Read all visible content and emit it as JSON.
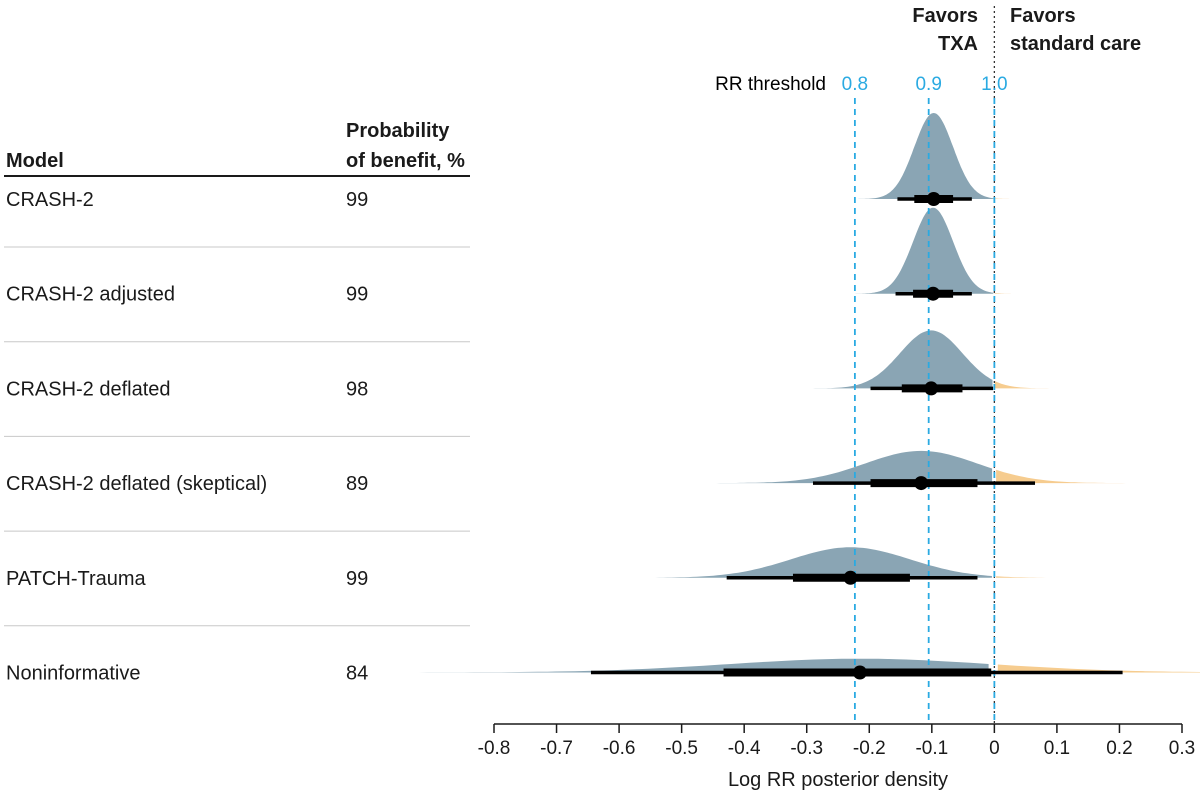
{
  "table": {
    "model_header": "Model",
    "prob_header_line1": "Probability",
    "prob_header_line2": "of benefit, %"
  },
  "favors": {
    "txa_line1": "Favors",
    "txa_line2": "TXA",
    "standard_line1": "Favors",
    "standard_line2": "standard care"
  },
  "threshold": {
    "label": "RR threshold",
    "values": [
      0.8,
      0.9,
      1.0
    ],
    "value_labels": [
      "0.8",
      "0.9",
      "1.0"
    ]
  },
  "colors": {
    "benefit": "#8aa5b4",
    "harm": "#f6cc8f",
    "threshold_line": "#2aaae2",
    "null_line": "#333333",
    "interval": "#000000",
    "row_divider": "#c8c8c8"
  },
  "chart_data": {
    "type": "density",
    "title": "",
    "xlabel": "Log RR posterior density",
    "ylabel": "",
    "xlim": [
      -0.8,
      0.3
    ],
    "xticks": [
      -0.8,
      -0.7,
      -0.6,
      -0.5,
      -0.4,
      -0.3,
      -0.2,
      -0.1,
      0,
      0.1,
      0.2,
      0.3
    ],
    "xtick_labels": [
      "-0.8",
      "-0.7",
      "-0.6",
      "-0.5",
      "-0.4",
      "-0.3",
      "-0.2",
      "-0.1",
      "0",
      "0.1",
      "0.2",
      "0.3"
    ],
    "reference_lines_log_rr": [
      -0.223,
      -0.105,
      0
    ],
    "series": [
      {
        "name": "CRASH-2",
        "probability_of_benefit": 99,
        "median": -0.097,
        "interval_66": [
          -0.128,
          -0.066
        ],
        "interval_95": [
          -0.155,
          -0.036
        ],
        "sd": 0.031
      },
      {
        "name": "CRASH-2 adjusted",
        "probability_of_benefit": 99,
        "median": -0.098,
        "interval_66": [
          -0.13,
          -0.066
        ],
        "interval_95": [
          -0.158,
          -0.036
        ],
        "sd": 0.032
      },
      {
        "name": "CRASH-2 deflated",
        "probability_of_benefit": 98,
        "median": -0.101,
        "interval_66": [
          -0.148,
          -0.051
        ],
        "interval_95": [
          -0.198,
          -0.002
        ],
        "sd": 0.05
      },
      {
        "name": "CRASH-2 deflated (skeptical)",
        "probability_of_benefit": 89,
        "median": -0.117,
        "interval_66": [
          -0.198,
          -0.027
        ],
        "interval_95": [
          -0.29,
          0.065
        ],
        "sd": 0.09
      },
      {
        "name": "PATCH-Trauma",
        "probability_of_benefit": 99,
        "median": -0.23,
        "interval_66": [
          -0.322,
          -0.135
        ],
        "interval_95": [
          -0.428,
          -0.027
        ],
        "sd": 0.095
      },
      {
        "name": "Noninformative",
        "probability_of_benefit": 84,
        "median": -0.215,
        "interval_66": [
          -0.433,
          -0.005
        ],
        "interval_95": [
          -0.645,
          0.205
        ],
        "sd": 0.21
      }
    ]
  }
}
